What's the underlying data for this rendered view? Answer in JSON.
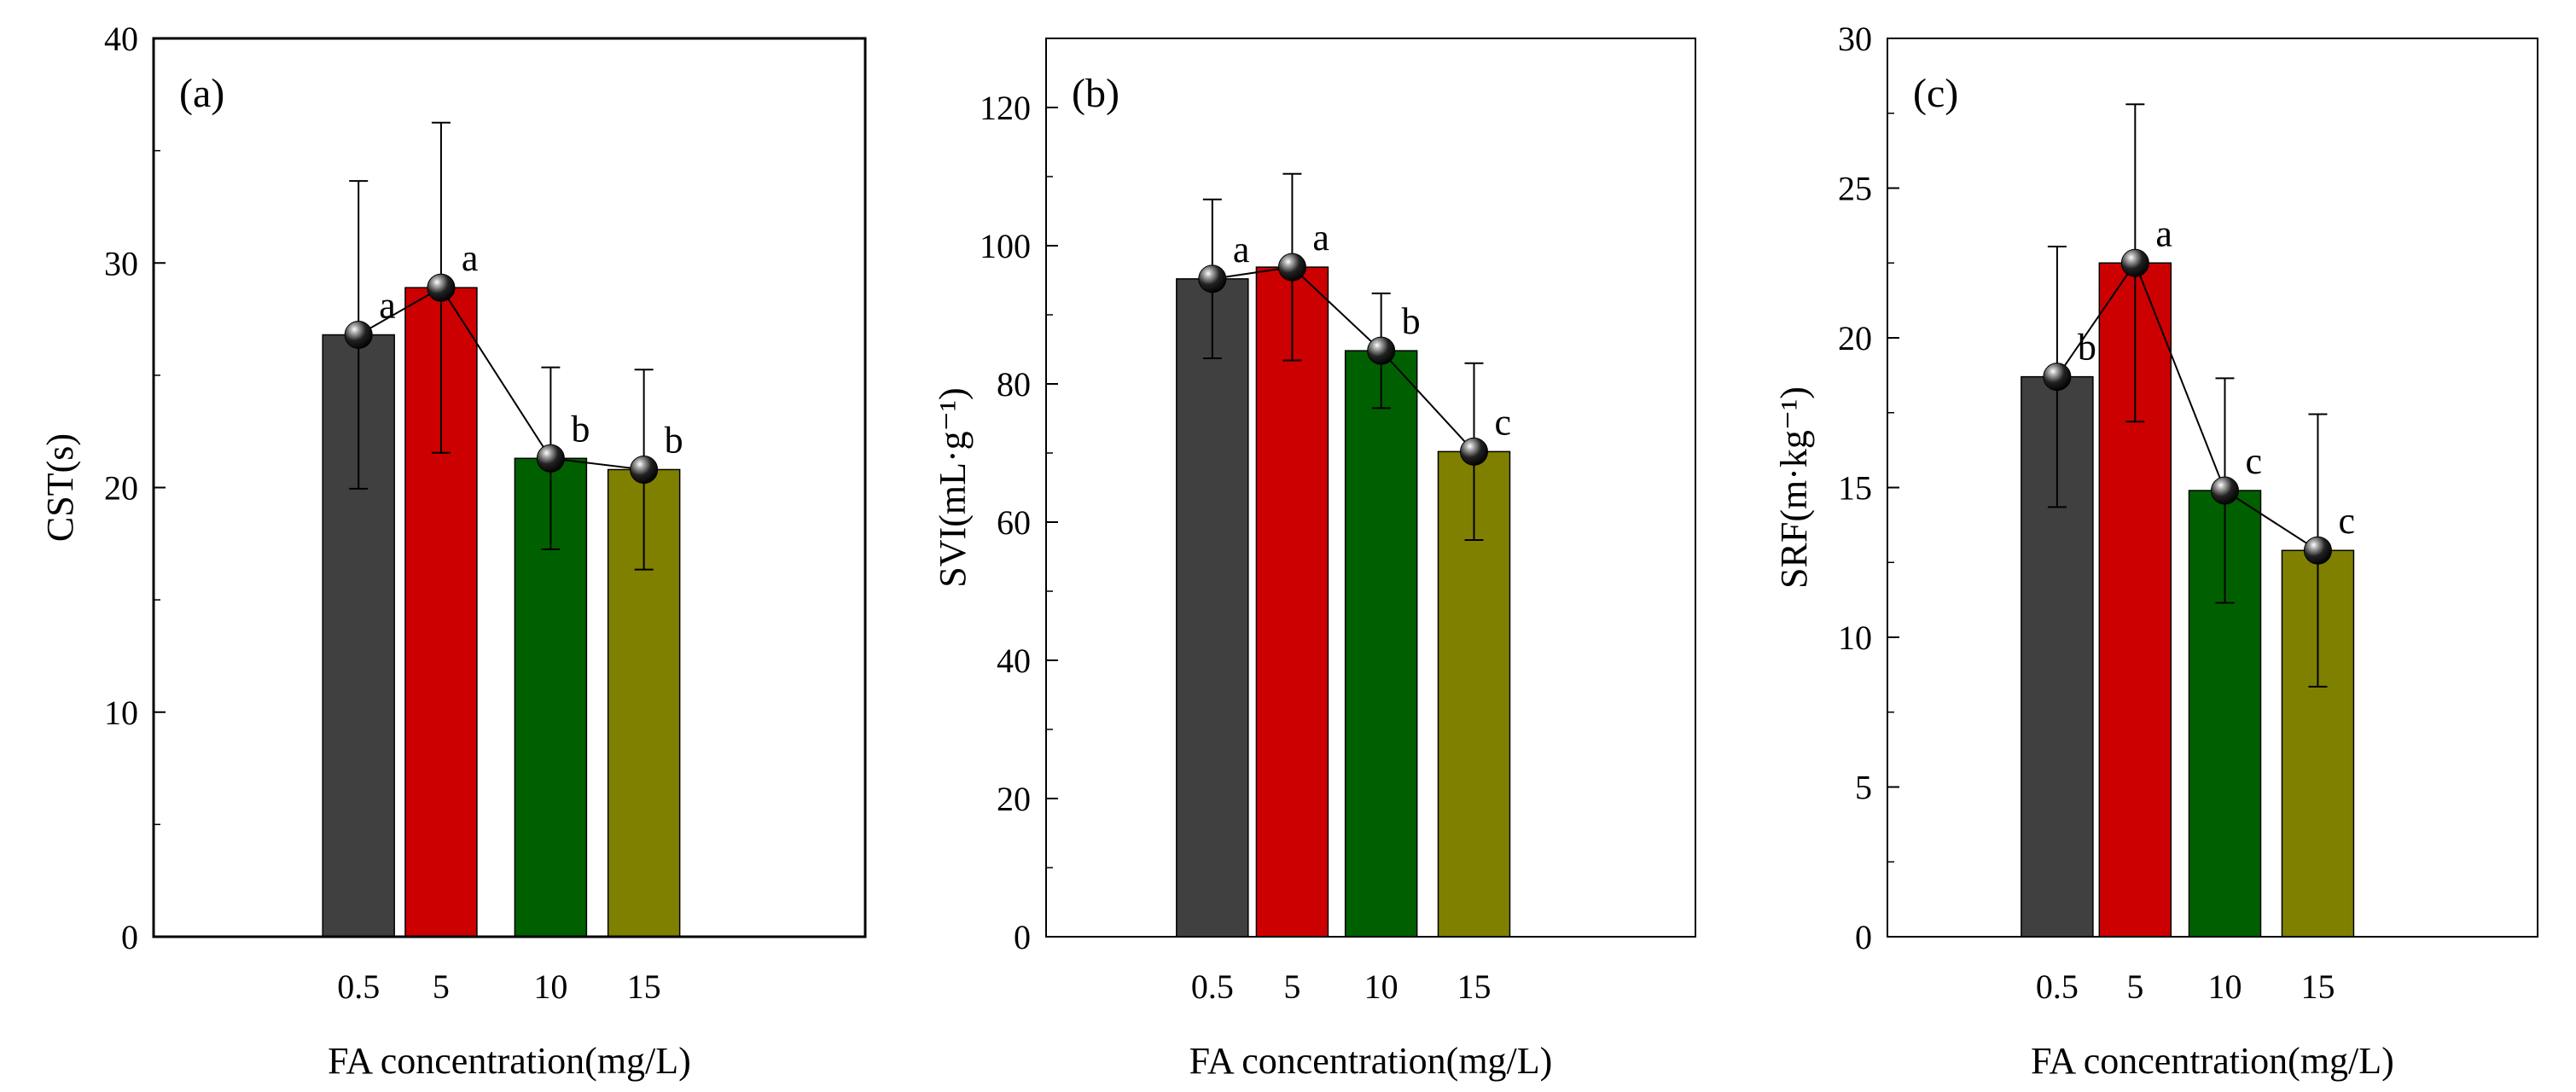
{
  "chart_data": [
    {
      "type": "bar",
      "panel_label": "(a)",
      "xlabel": "FA concentration(mg/L)",
      "ylabel": "CST(s)",
      "ylim": [
        0,
        40
      ],
      "yticks": [
        "0",
        "10",
        "20",
        "30",
        "40"
      ],
      "categories": [
        "0.5",
        "5",
        "10",
        "15"
      ],
      "values": [
        26.8,
        28.9,
        21.3,
        20.8
      ],
      "errors": [
        6.85,
        7.35,
        4.05,
        4.45
      ],
      "letters": [
        "a",
        "a",
        "b",
        "b"
      ],
      "colors": [
        "#404040",
        "#cc0000",
        "#006000",
        "#808000"
      ],
      "grid": false,
      "overlay": "line with black sphere markers through bar tops"
    },
    {
      "type": "bar",
      "panel_label": "(b)",
      "xlabel": "FA concentration(mg/L)",
      "ylabel": "SVI(mL·g⁻¹)",
      "ylim": [
        0,
        130
      ],
      "yticks": [
        "0",
        "20",
        "40",
        "60",
        "80",
        "100",
        "120"
      ],
      "categories": [
        "0.5",
        "5",
        "10",
        "15"
      ],
      "values": [
        95.2,
        96.9,
        84.8,
        70.2
      ],
      "errors": [
        11.5,
        13.5,
        8.3,
        12.8
      ],
      "letters": [
        "a",
        "a",
        "b",
        "c"
      ],
      "colors": [
        "#404040",
        "#cc0000",
        "#006000",
        "#808000"
      ],
      "grid": false,
      "overlay": "line with black sphere markers through bar tops"
    },
    {
      "type": "bar",
      "panel_label": "(c)",
      "xlabel": "FA concentration(mg/L)",
      "ylabel": "SRF(m·kg⁻¹)",
      "ylim": [
        0,
        30
      ],
      "yticks": [
        "0",
        "5",
        "10",
        "15",
        "20",
        "25",
        "30"
      ],
      "categories": [
        "0.5",
        "5",
        "10",
        "15"
      ],
      "values": [
        18.7,
        22.5,
        14.9,
        12.9
      ],
      "errors": [
        4.35,
        5.3,
        3.75,
        4.55
      ],
      "letters": [
        "b",
        "a",
        "c",
        "c"
      ],
      "colors": [
        "#404040",
        "#cc0000",
        "#006000",
        "#808000"
      ],
      "grid": false,
      "overlay": "line with black sphere markers through bar tops"
    }
  ]
}
